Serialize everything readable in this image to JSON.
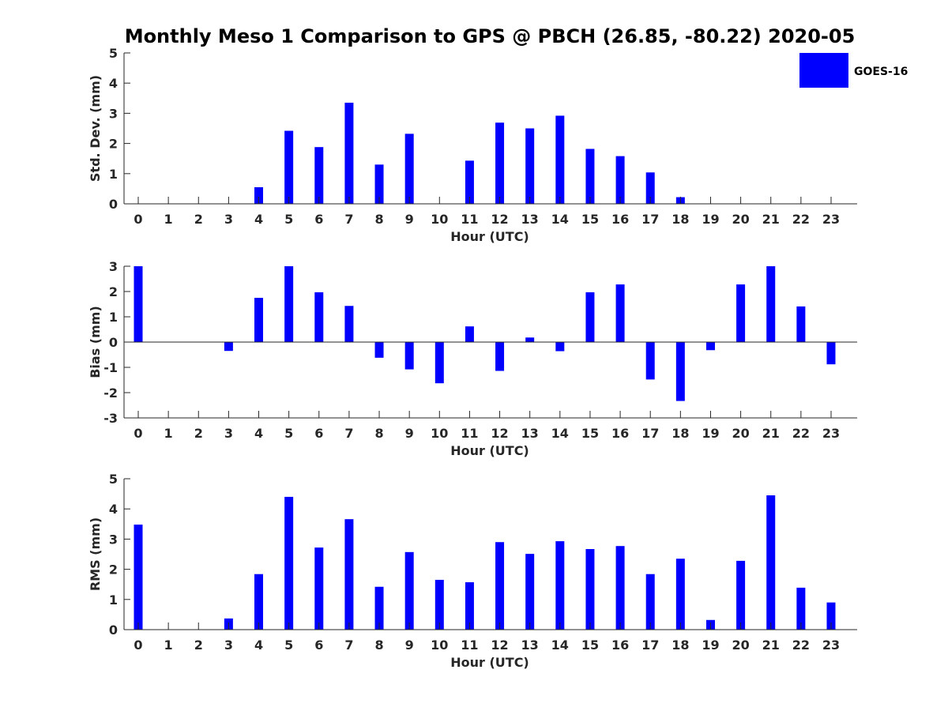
{
  "title": "Monthly Meso 1 Comparison to GPS @ PBCH (26.85, -80.22) 2020-05",
  "legend": {
    "label": "GOES-16",
    "color": "#0000ff"
  },
  "chart_data": [
    {
      "type": "bar",
      "name": "std-dev",
      "ylabel": "Std. Dev. (mm)",
      "xlabel": "Hour (UTC)",
      "ylim": [
        0,
        5
      ],
      "yticks": [
        0,
        1,
        2,
        3,
        4,
        5
      ],
      "categories": [
        "0",
        "1",
        "2",
        "3",
        "4",
        "5",
        "6",
        "7",
        "8",
        "9",
        "10",
        "11",
        "12",
        "13",
        "14",
        "15",
        "16",
        "17",
        "18",
        "19",
        "20",
        "21",
        "22",
        "23"
      ],
      "series": [
        {
          "name": "GOES-16",
          "color": "#0000ff",
          "values": [
            0,
            0,
            0,
            0,
            0.55,
            2.42,
            1.88,
            3.35,
            1.3,
            2.32,
            0,
            1.43,
            2.69,
            2.5,
            2.92,
            1.82,
            1.58,
            1.04,
            0.22,
            0,
            0,
            0,
            0,
            0
          ]
        }
      ]
    },
    {
      "type": "bar",
      "name": "bias",
      "ylabel": "Bias (mm)",
      "xlabel": "Hour (UTC)",
      "ylim": [
        -3,
        3
      ],
      "yticks": [
        -3,
        -2,
        -1,
        0,
        1,
        2,
        3
      ],
      "categories": [
        "0",
        "1",
        "2",
        "3",
        "4",
        "5",
        "6",
        "7",
        "8",
        "9",
        "10",
        "11",
        "12",
        "13",
        "14",
        "15",
        "16",
        "17",
        "18",
        "19",
        "20",
        "21",
        "22",
        "23"
      ],
      "series": [
        {
          "name": "GOES-16",
          "color": "#0000ff",
          "values": [
            3.0,
            0,
            0,
            -0.35,
            1.75,
            3.0,
            1.97,
            1.43,
            -0.62,
            -1.08,
            -1.63,
            0.62,
            -1.14,
            0.18,
            -0.36,
            1.97,
            2.28,
            -1.48,
            -2.33,
            -0.32,
            2.28,
            3.0,
            1.41,
            -0.88
          ]
        }
      ]
    },
    {
      "type": "bar",
      "name": "rms",
      "ylabel": "RMS (mm)",
      "xlabel": "Hour (UTC)",
      "ylim": [
        0,
        5
      ],
      "yticks": [
        0,
        1,
        2,
        3,
        4,
        5
      ],
      "categories": [
        "0",
        "1",
        "2",
        "3",
        "4",
        "5",
        "6",
        "7",
        "8",
        "9",
        "10",
        "11",
        "12",
        "13",
        "14",
        "15",
        "16",
        "17",
        "18",
        "19",
        "20",
        "21",
        "22",
        "23"
      ],
      "series": [
        {
          "name": "GOES-16",
          "color": "#0000ff",
          "values": [
            3.48,
            0,
            0,
            0.37,
            1.84,
            4.4,
            2.72,
            3.66,
            1.42,
            2.57,
            1.65,
            1.57,
            2.9,
            2.51,
            2.93,
            2.67,
            2.77,
            1.84,
            2.35,
            0.32,
            2.28,
            4.45,
            1.39,
            0.9
          ]
        }
      ]
    }
  ]
}
